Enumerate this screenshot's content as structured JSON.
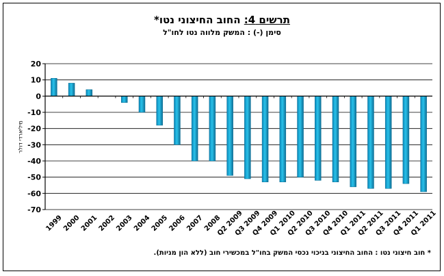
{
  "chart_data": {
    "type": "bar",
    "title_prefix": "תרשים 4:",
    "title_main": " החוב החיצוני נטו*",
    "subtitle": "סימן (-) : המשק מלווה נטו לחו\"ל",
    "ylabel": "מיליארדי דולר",
    "xlabel": "",
    "footnote": "* חוב חיצוני נטו : החוב החיצוני בניכוי נכסי המשק בחו\"ל במכשירי חוב (ללא הון מניות).",
    "ylim": [
      -70,
      20
    ],
    "yticks": [
      20,
      10,
      0,
      -10,
      -20,
      -30,
      -40,
      -50,
      -60,
      -70
    ],
    "grid": true,
    "legend": "none",
    "bar_color": "#1ea3cf",
    "categories": [
      "1999",
      "2000",
      "2001",
      "2002",
      "2003",
      "2004",
      "2005",
      "2006",
      "2007",
      "2008",
      "Q2 2009",
      "Q3 2009",
      "Q4 2009",
      "Q1 2010",
      "Q2 2010",
      "Q3 2010",
      "Q4 2010",
      "Q1 2011",
      "Q2 2011",
      "Q3 2011",
      "Q4 2011",
      "Q1 2011"
    ],
    "values": [
      11,
      8,
      4,
      0,
      -4,
      -10,
      -18,
      -30,
      -40,
      -40,
      -49,
      -51,
      -53,
      -53,
      -50,
      -52,
      -53,
      -56,
      -57,
      -57,
      -54,
      -59
    ]
  }
}
